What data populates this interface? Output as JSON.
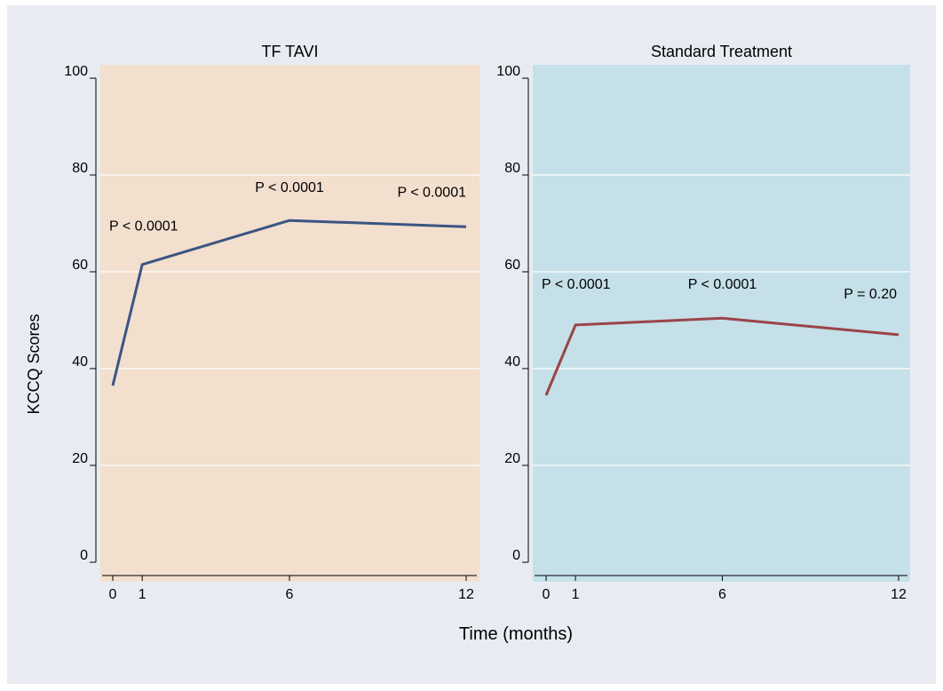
{
  "figure": {
    "background": "#e8ecf2",
    "ylabel": "KCCQ Scores",
    "xlabel": "Time (months)"
  },
  "chart_data": [
    {
      "type": "line",
      "panel_title": "TF TAVI",
      "panel_background": "#f2dfce",
      "strip_background": "#e8ecf2",
      "x": [
        0,
        1,
        6,
        12
      ],
      "xticks": [
        0,
        1,
        6,
        12
      ],
      "xlim": [
        -0.3,
        12.4
      ],
      "yticks": [
        0,
        20,
        40,
        60,
        80,
        100
      ],
      "ylim": [
        0,
        100
      ],
      "grid": true,
      "series": [
        {
          "values": [
            36.5,
            61.5,
            70.6,
            69.3
          ],
          "color": "#3b5582"
        }
      ],
      "annotations": [
        {
          "text": "P < 0.0001",
          "x": 1,
          "y": 68.5
        },
        {
          "text": "P < 0.0001",
          "x": 6,
          "y": 76.5
        },
        {
          "text": "P < 0.0001",
          "x": 12,
          "y": 75.5
        }
      ]
    },
    {
      "type": "line",
      "panel_title": "Standard Treatment",
      "panel_background": "#c5e0e9",
      "strip_background": "#e8ecf2",
      "x": [
        0,
        1,
        6,
        12
      ],
      "xticks": [
        0,
        1,
        6,
        12
      ],
      "xlim": [
        -0.3,
        12.4
      ],
      "yticks": [
        0,
        20,
        40,
        60,
        80,
        100
      ],
      "ylim": [
        0,
        100
      ],
      "grid": true,
      "series": [
        {
          "values": [
            34.5,
            49,
            50.4,
            47
          ],
          "color": "#9b4448"
        }
      ],
      "annotations": [
        {
          "text": "P < 0.0001",
          "x": 1,
          "y": 56.5
        },
        {
          "text": "P < 0.0001",
          "x": 6,
          "y": 56.5
        },
        {
          "text": "P = 0.20",
          "x": 12,
          "y": 54.5
        }
      ]
    }
  ]
}
